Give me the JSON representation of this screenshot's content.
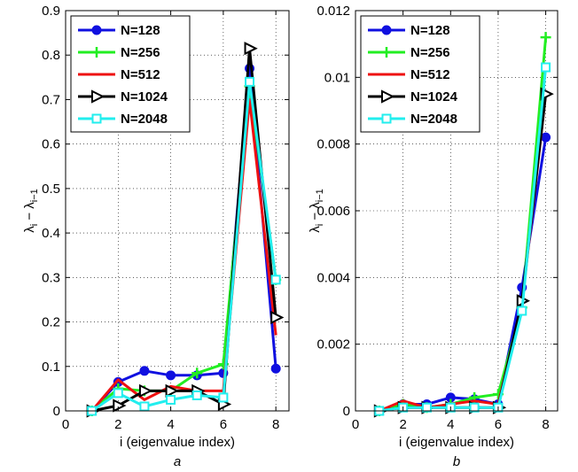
{
  "chart_data": [
    {
      "type": "line",
      "panel_label": "a",
      "xlabel": "i (eigenvalue index)",
      "ylabel": "λi − λi−1",
      "ylabel_main": "λ",
      "ylabel_sub1": "i",
      "ylabel_mid": " − λ",
      "ylabel_sub2": "i−1",
      "xlim": [
        0,
        8.5
      ],
      "ylim": [
        0,
        0.9
      ],
      "xticks": [
        "0",
        "2",
        "4",
        "6",
        "8"
      ],
      "xtick_values": [
        0,
        2,
        4,
        6,
        8
      ],
      "yticks": [
        "0",
        "0.1",
        "0.2",
        "0.3",
        "0.4",
        "0.5",
        "0.6",
        "0.7",
        "0.8",
        "0.9"
      ],
      "ytick_values": [
        0,
        0.1,
        0.2,
        0.3,
        0.4,
        0.5,
        0.6,
        0.7,
        0.8,
        0.9
      ],
      "grid": "dotted",
      "legend_position": "top-left",
      "x": [
        1,
        2,
        3,
        4,
        5,
        6,
        7,
        8
      ],
      "series": [
        {
          "name": "N=128",
          "color": "#1010e0",
          "marker": "circle",
          "values": [
            0.0,
            0.065,
            0.09,
            0.08,
            0.08,
            0.085,
            0.77,
            0.095
          ]
        },
        {
          "name": "N=256",
          "color": "#22ee22",
          "marker": "plus",
          "values": [
            0.0,
            0.05,
            0.045,
            0.045,
            0.085,
            0.105,
            0.73,
            0.295
          ]
        },
        {
          "name": "N=512",
          "color": "#ee1111",
          "marker": "none",
          "values": [
            0.0,
            0.07,
            0.025,
            0.055,
            0.045,
            0.045,
            0.7,
            0.17
          ]
        },
        {
          "name": "N=1024",
          "color": "#000000",
          "marker": "triangle-right",
          "values": [
            0.0,
            0.012,
            0.045,
            0.045,
            0.045,
            0.015,
            0.815,
            0.21
          ]
        },
        {
          "name": "N=2048",
          "color": "#22eeee",
          "marker": "square",
          "values": [
            0.0,
            0.04,
            0.01,
            0.025,
            0.035,
            0.03,
            0.74,
            0.295
          ]
        }
      ]
    },
    {
      "type": "line",
      "panel_label": "b",
      "xlabel": "i (eigenvalue index)",
      "ylabel": "λi − λi−1",
      "ylabel_main": "λ",
      "ylabel_sub1": "i",
      "ylabel_mid": " − λ",
      "ylabel_sub2": "i−1",
      "xlim": [
        0,
        8.5
      ],
      "ylim": [
        0,
        0.012
      ],
      "xticks": [
        "0",
        "2",
        "4",
        "6",
        "8"
      ],
      "xtick_values": [
        0,
        2,
        4,
        6,
        8
      ],
      "yticks": [
        "0",
        "0.002",
        "0.004",
        "0.006",
        "0.008",
        "0.01",
        "0.012"
      ],
      "ytick_values": [
        0,
        0.002,
        0.004,
        0.006,
        0.008,
        0.01,
        0.012
      ],
      "grid": "dotted",
      "legend_position": "top-left",
      "x": [
        1,
        2,
        3,
        4,
        5,
        6,
        7,
        8
      ],
      "series": [
        {
          "name": "N=128",
          "color": "#1010e0",
          "marker": "circle",
          "values": [
            0.0,
            0.0002,
            0.0002,
            0.0004,
            0.00035,
            0.0002,
            0.0037,
            0.0082
          ]
        },
        {
          "name": "N=256",
          "color": "#22ee22",
          "marker": "plus",
          "values": [
            0.0,
            0.0002,
            0.0001,
            0.0002,
            0.0004,
            0.0005,
            0.0031,
            0.0112
          ]
        },
        {
          "name": "N=512",
          "color": "#ee1111",
          "marker": "none",
          "values": [
            0.0,
            0.0003,
            0.0001,
            0.0002,
            0.0003,
            0.0002,
            0.0032,
            0.0095
          ]
        },
        {
          "name": "N=1024",
          "color": "#000000",
          "marker": "triangle-right",
          "values": [
            0.0,
            0.0001,
            0.0001,
            0.0001,
            0.0001,
            0.0001,
            0.0033,
            0.0095
          ]
        },
        {
          "name": "N=2048",
          "color": "#22eeee",
          "marker": "square",
          "values": [
            0.0,
            0.0001,
            0.0001,
            0.0001,
            0.0001,
            0.0001,
            0.003,
            0.0103
          ]
        }
      ]
    }
  ]
}
